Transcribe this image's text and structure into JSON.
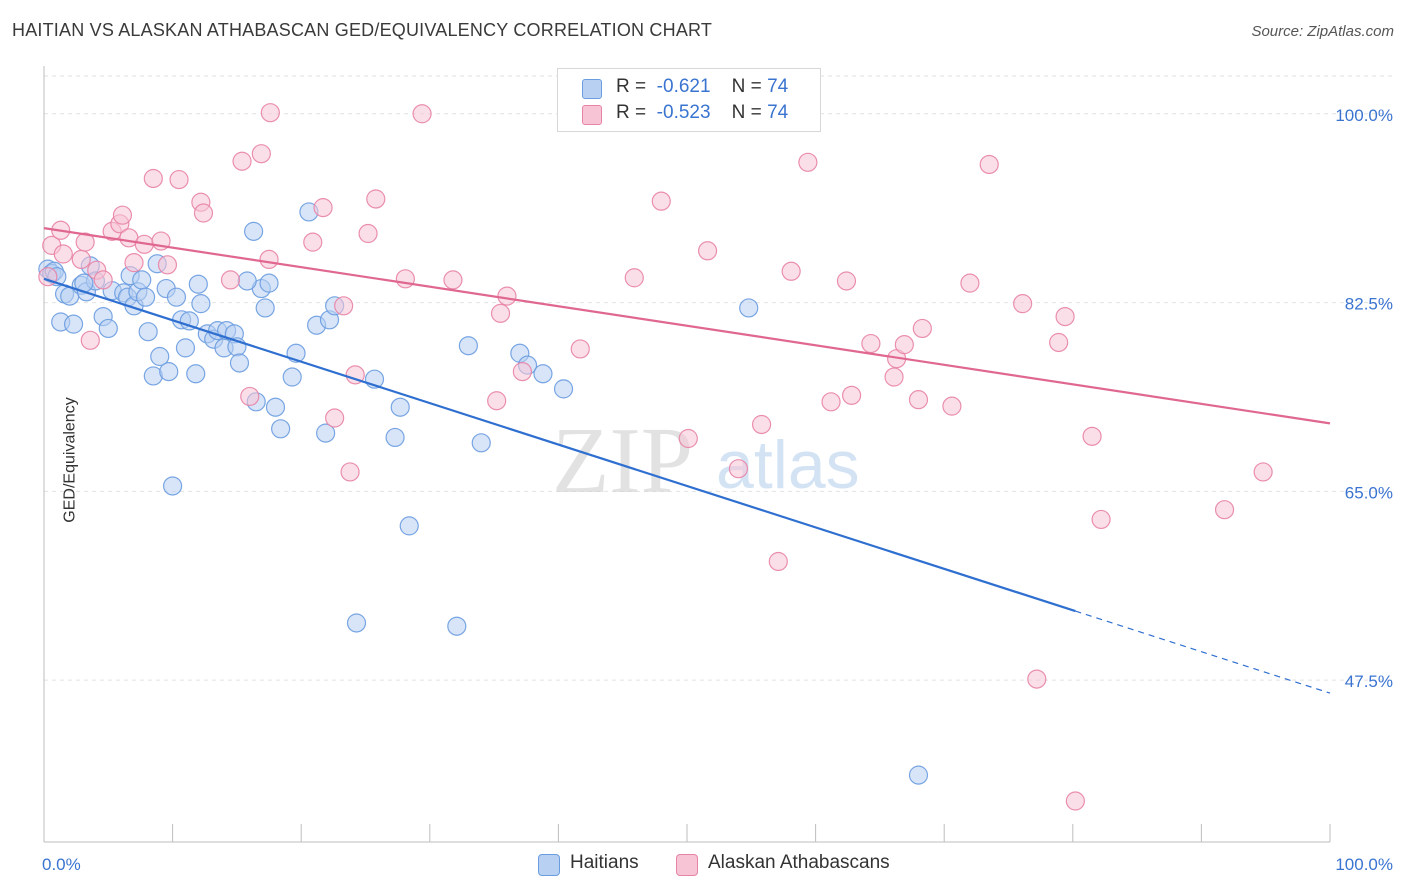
{
  "title": "HAITIAN VS ALASKAN ATHABASCAN GED/EQUIVALENCY CORRELATION CHART",
  "source": "Source: ZipAtlas.com",
  "watermark": {
    "zip": "ZIP",
    "atlas": "atlas"
  },
  "legend": [
    {
      "r_label": "R =",
      "r_value": "-0.621",
      "n_label": "N =",
      "n_value": "74"
    },
    {
      "r_label": "R =",
      "r_value": "-0.523",
      "n_label": "N =",
      "n_value": "74"
    }
  ],
  "chart_data": {
    "type": "scatter",
    "ylabel": "GED/Equivalency",
    "xlabel": "",
    "xlim": [
      0,
      100
    ],
    "ylim": [
      32.5,
      103.5
    ],
    "x_tick_labels": [
      {
        "x": 0,
        "label": "0.0%"
      },
      {
        "x": 100,
        "label": "100.0%"
      }
    ],
    "y_tick_labels": [
      {
        "y": 100,
        "label": "100.0%"
      },
      {
        "y": 82.5,
        "label": "82.5%"
      },
      {
        "y": 65,
        "label": "65.0%"
      },
      {
        "y": 47.5,
        "label": "47.5%"
      }
    ],
    "grid": true,
    "legend_position": "top-center",
    "series": [
      {
        "name": "Haitians",
        "color": "#6a9ce0",
        "fill": "#b8d0f2",
        "trend": {
          "x0": 0,
          "y0": 84.7,
          "x1": 100,
          "y1": 46.3,
          "solid_until": 80.2
        },
        "points": [
          [
            0.3,
            85.6
          ],
          [
            0.6,
            85.2
          ],
          [
            0.8,
            85.4
          ],
          [
            1.0,
            84.9
          ],
          [
            1.3,
            80.7
          ],
          [
            1.6,
            83.3
          ],
          [
            2.0,
            83.1
          ],
          [
            2.3,
            80.5
          ],
          [
            2.9,
            84.1
          ],
          [
            3.3,
            83.5
          ],
          [
            3.6,
            85.9
          ],
          [
            4.0,
            84.5
          ],
          [
            4.6,
            81.2
          ],
          [
            5.0,
            80.1
          ],
          [
            5.3,
            83.6
          ],
          [
            6.2,
            83.4
          ],
          [
            6.5,
            83.0
          ],
          [
            6.7,
            85.0
          ],
          [
            7.0,
            82.2
          ],
          [
            7.3,
            83.5
          ],
          [
            7.6,
            84.6
          ],
          [
            7.9,
            83.0
          ],
          [
            8.1,
            79.8
          ],
          [
            8.5,
            75.7
          ],
          [
            8.8,
            86.1
          ],
          [
            9.0,
            77.5
          ],
          [
            9.5,
            83.8
          ],
          [
            9.7,
            76.1
          ],
          [
            10.0,
            65.5
          ],
          [
            10.3,
            83.0
          ],
          [
            10.7,
            80.9
          ],
          [
            11.0,
            78.3
          ],
          [
            11.3,
            80.8
          ],
          [
            11.8,
            75.9
          ],
          [
            12.0,
            84.2
          ],
          [
            12.2,
            82.4
          ],
          [
            12.7,
            79.6
          ],
          [
            13.2,
            79.1
          ],
          [
            13.5,
            79.9
          ],
          [
            14.0,
            78.3
          ],
          [
            14.2,
            79.9
          ],
          [
            14.8,
            79.6
          ],
          [
            15.0,
            78.4
          ],
          [
            15.2,
            76.9
          ],
          [
            16.5,
            73.3
          ],
          [
            16.9,
            83.8
          ],
          [
            17.2,
            82.0
          ],
          [
            17.5,
            84.3
          ],
          [
            18.0,
            72.8
          ],
          [
            18.4,
            70.8
          ],
          [
            19.3,
            75.6
          ],
          [
            19.6,
            77.8
          ],
          [
            20.6,
            90.9
          ],
          [
            21.2,
            80.4
          ],
          [
            21.9,
            70.4
          ],
          [
            22.2,
            80.9
          ],
          [
            22.6,
            82.2
          ],
          [
            24.3,
            52.8
          ],
          [
            25.7,
            75.4
          ],
          [
            27.3,
            70.0
          ],
          [
            27.7,
            72.8
          ],
          [
            28.4,
            61.8
          ],
          [
            32.1,
            52.5
          ],
          [
            33.0,
            78.5
          ],
          [
            34.0,
            69.5
          ],
          [
            37.0,
            77.8
          ],
          [
            37.6,
            76.7
          ],
          [
            38.8,
            75.9
          ],
          [
            40.4,
            74.5
          ],
          [
            54.8,
            82.0
          ],
          [
            68.0,
            38.7
          ],
          [
            15.8,
            84.5
          ],
          [
            16.3,
            89.1
          ],
          [
            3.1,
            84.3
          ]
        ]
      },
      {
        "name": "Alaskan Athabascans",
        "color": "#e883a6",
        "fill": "#f7c4d6",
        "trend": {
          "x0": 0,
          "y0": 89.4,
          "x1": 100,
          "y1": 71.3,
          "solid_until": 100
        },
        "points": [
          [
            0.3,
            84.9
          ],
          [
            0.6,
            87.8
          ],
          [
            1.3,
            89.2
          ],
          [
            1.5,
            87.0
          ],
          [
            2.9,
            86.5
          ],
          [
            3.2,
            88.1
          ],
          [
            3.6,
            79.0
          ],
          [
            4.1,
            85.5
          ],
          [
            4.6,
            84.6
          ],
          [
            5.3,
            89.1
          ],
          [
            5.9,
            89.8
          ],
          [
            6.1,
            90.6
          ],
          [
            6.6,
            88.5
          ],
          [
            7.0,
            86.2
          ],
          [
            7.8,
            87.9
          ],
          [
            8.5,
            94.0
          ],
          [
            9.1,
            88.2
          ],
          [
            9.6,
            86.0
          ],
          [
            10.5,
            93.9
          ],
          [
            12.2,
            91.8
          ],
          [
            12.4,
            90.8
          ],
          [
            14.5,
            84.6
          ],
          [
            15.4,
            95.6
          ],
          [
            16.0,
            73.8
          ],
          [
            16.9,
            96.3
          ],
          [
            17.5,
            86.5
          ],
          [
            17.6,
            100.1
          ],
          [
            20.9,
            88.1
          ],
          [
            21.7,
            91.3
          ],
          [
            22.6,
            71.8
          ],
          [
            23.3,
            82.2
          ],
          [
            23.8,
            66.8
          ],
          [
            24.2,
            75.8
          ],
          [
            25.2,
            88.9
          ],
          [
            25.8,
            92.1
          ],
          [
            28.1,
            84.7
          ],
          [
            29.4,
            100.0
          ],
          [
            31.8,
            84.6
          ],
          [
            35.2,
            73.4
          ],
          [
            35.5,
            81.5
          ],
          [
            36.0,
            83.1
          ],
          [
            37.2,
            76.1
          ],
          [
            41.7,
            78.2
          ],
          [
            45.9,
            84.8
          ],
          [
            48.0,
            91.9
          ],
          [
            50.1,
            69.9
          ],
          [
            51.6,
            87.3
          ],
          [
            54.0,
            67.1
          ],
          [
            55.8,
            71.2
          ],
          [
            57.1,
            58.5
          ],
          [
            58.1,
            85.4
          ],
          [
            59.1,
            100.0
          ],
          [
            59.4,
            95.5
          ],
          [
            61.2,
            73.3
          ],
          [
            62.4,
            84.5
          ],
          [
            62.8,
            73.9
          ],
          [
            64.3,
            78.7
          ],
          [
            66.1,
            75.6
          ],
          [
            66.3,
            77.3
          ],
          [
            66.9,
            78.6
          ],
          [
            68.0,
            73.5
          ],
          [
            68.3,
            80.1
          ],
          [
            70.6,
            72.9
          ],
          [
            72.0,
            84.3
          ],
          [
            73.5,
            95.3
          ],
          [
            76.1,
            82.4
          ],
          [
            77.2,
            47.6
          ],
          [
            78.9,
            78.8
          ],
          [
            79.4,
            81.2
          ],
          [
            80.2,
            36.3
          ],
          [
            81.5,
            70.1
          ],
          [
            82.2,
            62.4
          ],
          [
            91.8,
            63.3
          ],
          [
            94.8,
            66.8
          ]
        ]
      }
    ]
  }
}
